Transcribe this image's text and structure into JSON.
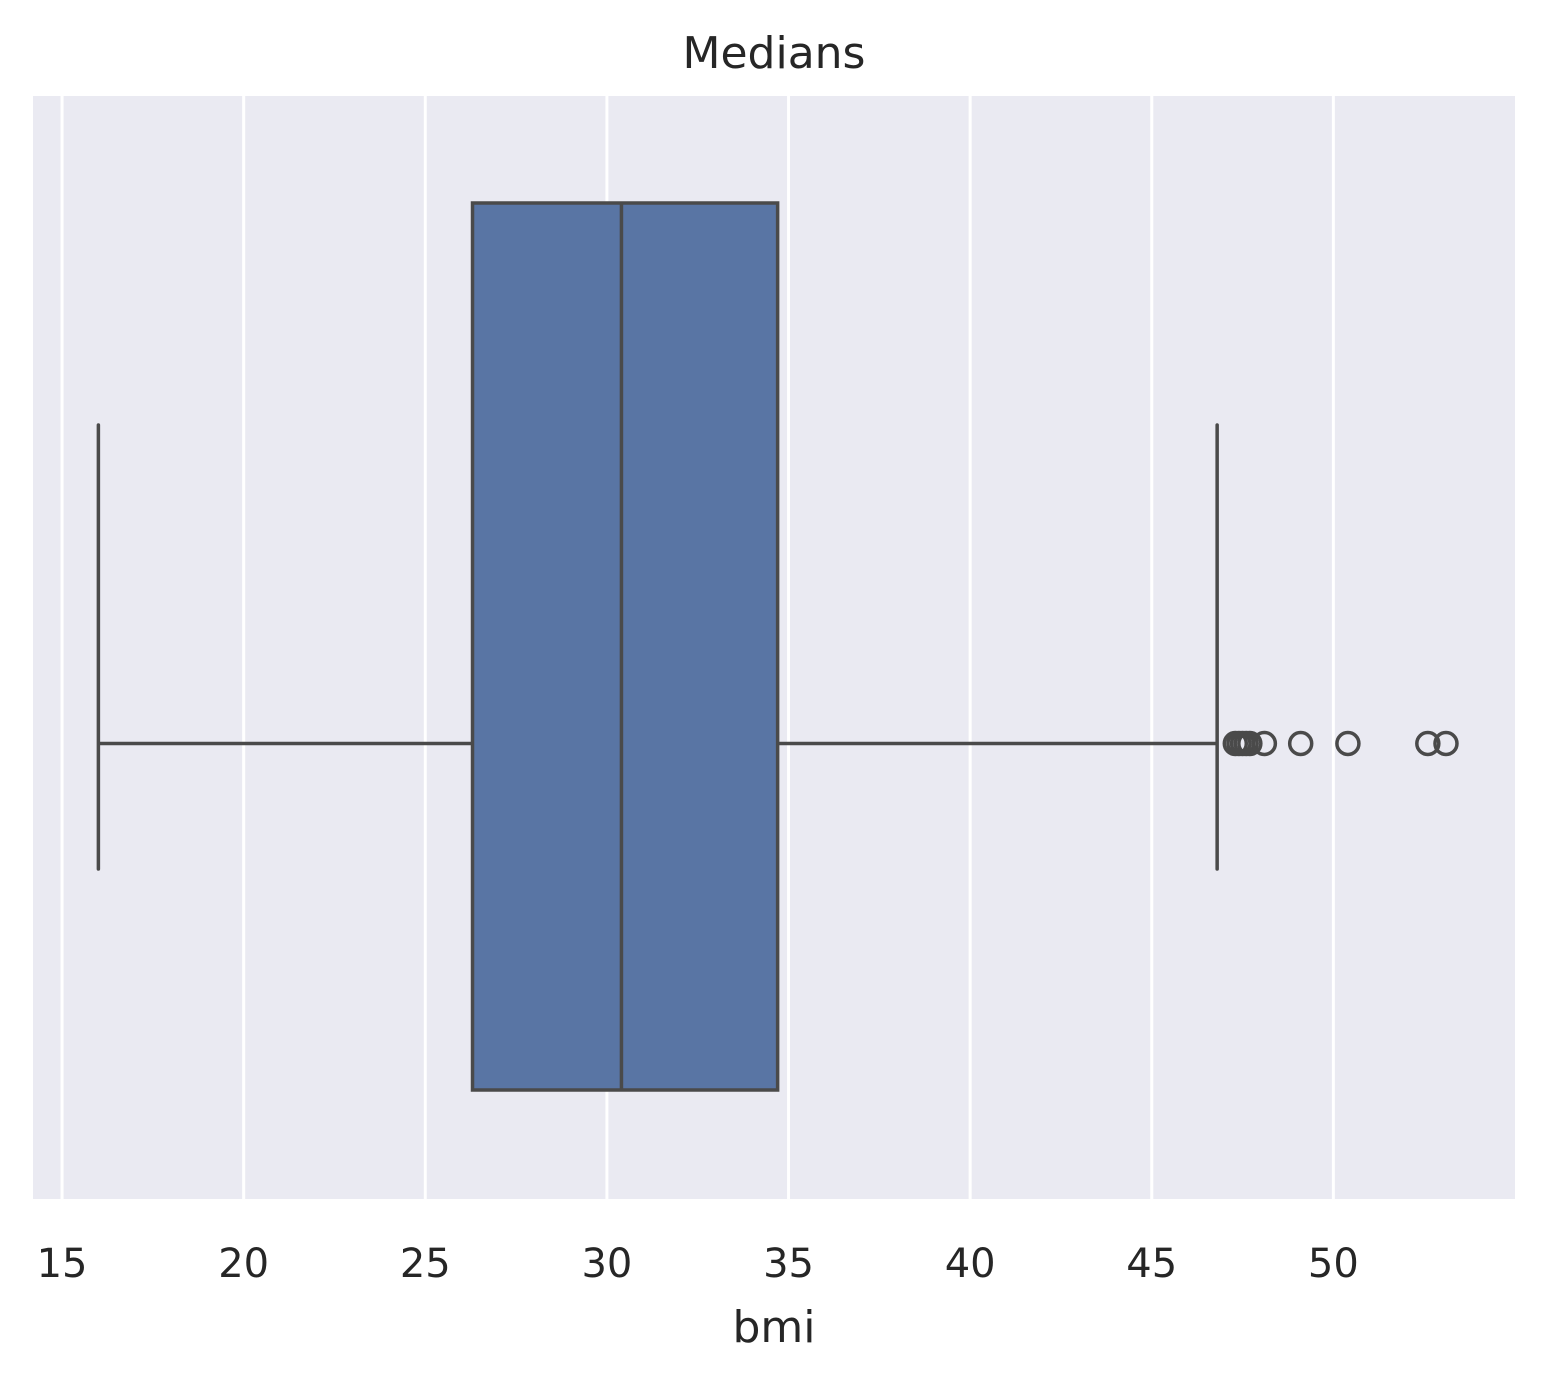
{
  "chart_data": {
    "type": "box",
    "orientation": "horizontal",
    "title": "Medians",
    "xlabel": "bmi",
    "ylabel": "",
    "xlim": [
      14.2,
      55.0
    ],
    "xticks": [
      15,
      20,
      25,
      30,
      35,
      40,
      45,
      50
    ],
    "xtick_labels": [
      "15",
      "20",
      "25",
      "30",
      "35",
      "40",
      "45",
      "50"
    ],
    "grid": true,
    "box": {
      "whisker_low": 16.0,
      "q1": 26.3,
      "median": 30.4,
      "q3": 34.7,
      "whisker_high": 46.8,
      "outliers": [
        47.3,
        47.4,
        47.5,
        47.6,
        47.7,
        48.1,
        49.1,
        50.4,
        52.6,
        53.1
      ]
    },
    "colors": {
      "box_fill": "#5975a4",
      "line": "#4a4a4a",
      "plot_bg": "#eaeaf2",
      "grid": "#ffffff",
      "text": "#262626"
    }
  }
}
